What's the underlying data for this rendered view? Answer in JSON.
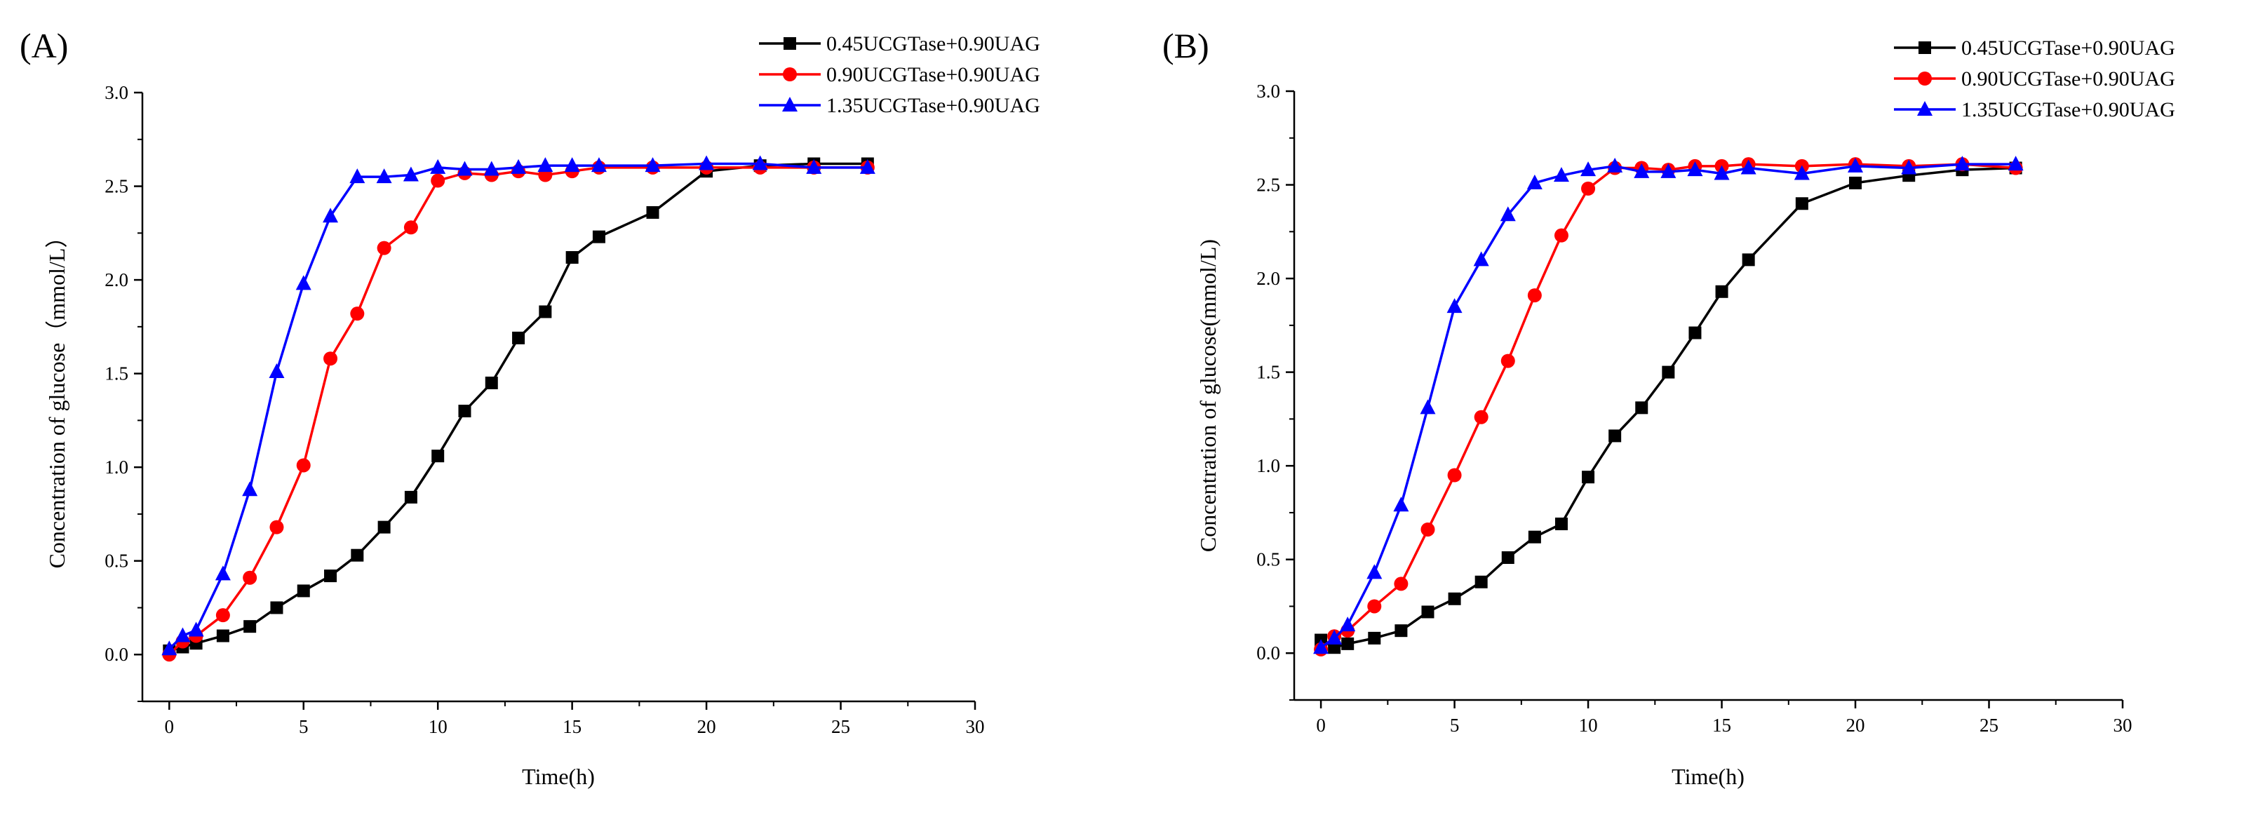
{
  "chart_data": [
    {
      "type": "line",
      "panel_label": "(A)",
      "xlabel": "Time(h)",
      "ylabel": "Concentration of  glucose（mmol/L）",
      "xlim": [
        -1,
        30
      ],
      "ylim": [
        -0.25,
        3.0
      ],
      "xticks": [
        0,
        5,
        10,
        15,
        20,
        25,
        30
      ],
      "yticks": [
        0.0,
        0.5,
        1.0,
        1.5,
        2.0,
        2.5,
        3.0
      ],
      "ytick_labels": [
        "0.0",
        "0.5",
        "1.0",
        "1.5",
        "2.0",
        "2.5",
        "3.0"
      ],
      "legend_position": "top-right",
      "series": [
        {
          "name": "0.45UCGTase+0.90UAG",
          "color": "#000000",
          "marker": "square",
          "x": [
            0,
            0.5,
            1,
            2,
            3,
            4,
            5,
            6,
            7,
            8,
            9,
            10,
            11,
            12,
            13,
            14,
            15,
            16,
            18,
            20,
            22,
            24,
            26
          ],
          "y": [
            0.02,
            0.04,
            0.06,
            0.1,
            0.15,
            0.25,
            0.34,
            0.42,
            0.53,
            0.68,
            0.84,
            1.06,
            1.3,
            1.45,
            1.69,
            1.83,
            2.12,
            2.23,
            2.36,
            2.58,
            2.61,
            2.62,
            2.62
          ]
        },
        {
          "name": "0.90UCGTase+0.90UAG",
          "color": "#ff0000",
          "marker": "circle",
          "x": [
            0,
            0.5,
            1,
            2,
            3,
            4,
            5,
            6,
            7,
            8,
            9,
            10,
            11,
            12,
            13,
            14,
            15,
            16,
            18,
            20,
            22,
            24,
            26
          ],
          "y": [
            0.0,
            0.07,
            0.1,
            0.21,
            0.41,
            0.68,
            1.01,
            1.58,
            1.82,
            2.17,
            2.28,
            2.53,
            2.57,
            2.56,
            2.58,
            2.56,
            2.58,
            2.6,
            2.6,
            2.6,
            2.6,
            2.6,
            2.6
          ]
        },
        {
          "name": "1.35UCGTase+0.90UAG",
          "color": "#0000ff",
          "marker": "triangle",
          "x": [
            0,
            0.5,
            1,
            2,
            3,
            4,
            5,
            6,
            7,
            8,
            9,
            10,
            11,
            12,
            13,
            14,
            15,
            16,
            18,
            20,
            22,
            24,
            26
          ],
          "y": [
            0.03,
            0.1,
            0.13,
            0.43,
            0.88,
            1.51,
            1.98,
            2.34,
            2.55,
            2.55,
            2.56,
            2.6,
            2.59,
            2.59,
            2.6,
            2.61,
            2.61,
            2.61,
            2.61,
            2.62,
            2.62,
            2.6,
            2.6
          ]
        }
      ]
    },
    {
      "type": "line",
      "panel_label": "(B)",
      "xlabel": "Time(h)",
      "ylabel": "Concentration of glucose(mmol/L)",
      "xlim": [
        -1,
        30
      ],
      "ylim": [
        -0.25,
        3.0
      ],
      "xticks": [
        0,
        5,
        10,
        15,
        20,
        25,
        30
      ],
      "yticks": [
        0.0,
        0.5,
        1.0,
        1.5,
        2.0,
        2.5,
        3.0
      ],
      "ytick_labels": [
        "0.0",
        "0.5",
        "1.0",
        "1.5",
        "2.0",
        "2.5",
        "3.0"
      ],
      "legend_position": "top-right",
      "series": [
        {
          "name": "0.45UCGTase+0.90UAG",
          "color": "#000000",
          "marker": "square",
          "x": [
            0,
            0.5,
            1,
            2,
            3,
            4,
            5,
            6,
            7,
            8,
            9,
            10,
            11,
            12,
            13,
            14,
            15,
            16,
            18,
            20,
            22,
            24,
            26
          ],
          "y": [
            0.07,
            0.03,
            0.05,
            0.08,
            0.12,
            0.22,
            0.29,
            0.38,
            0.51,
            0.62,
            0.69,
            0.94,
            1.16,
            1.31,
            1.5,
            1.71,
            1.93,
            2.1,
            2.4,
            2.51,
            2.55,
            2.58,
            2.59
          ]
        },
        {
          "name": "0.90UCGTase+0.90UAG",
          "color": "#ff0000",
          "marker": "circle",
          "x": [
            0,
            0.5,
            1,
            2,
            3,
            4,
            5,
            6,
            7,
            8,
            9,
            10,
            11,
            12,
            13,
            14,
            15,
            16,
            18,
            20,
            22,
            24,
            26
          ],
          "y": [
            0.02,
            0.09,
            0.12,
            0.25,
            0.37,
            0.66,
            0.95,
            1.26,
            1.56,
            1.91,
            2.23,
            2.48,
            2.59,
            2.59,
            2.58,
            2.6,
            2.6,
            2.61,
            2.6,
            2.61,
            2.6,
            2.61,
            2.59
          ]
        },
        {
          "name": "1.35UCGTase+0.90UAG",
          "color": "#0000ff",
          "marker": "triangle",
          "x": [
            0,
            0.5,
            1,
            2,
            3,
            4,
            5,
            6,
            7,
            8,
            9,
            10,
            11,
            12,
            13,
            14,
            15,
            16,
            18,
            20,
            22,
            24,
            26
          ],
          "y": [
            0.03,
            0.08,
            0.15,
            0.43,
            0.79,
            1.31,
            1.85,
            2.1,
            2.34,
            2.51,
            2.55,
            2.58,
            2.6,
            2.57,
            2.57,
            2.58,
            2.56,
            2.59,
            2.56,
            2.6,
            2.59,
            2.61,
            2.61
          ]
        }
      ]
    }
  ]
}
